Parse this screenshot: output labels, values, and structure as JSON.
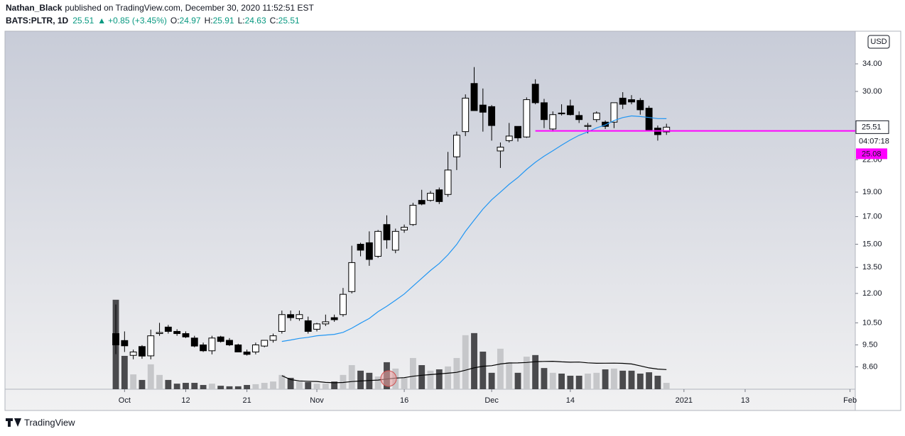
{
  "header": {
    "author": "Nathan_Black",
    "published": "published on TradingView.com, December 30, 2020 11:52:51 EST",
    "symbol": "BATS:PLTR, 1D",
    "change": "+0.85 (+3.45%)",
    "labels": [
      "O:",
      "H:",
      "L:",
      "C:"
    ]
  },
  "chart_data": {
    "type": "candlestick",
    "log_scale": true,
    "currency": "USD",
    "countdown": "04:07:18",
    "open": [
      10.0,
      9.69,
      9.06,
      9.43,
      9.04,
      10.0,
      10.3,
      10.1,
      10.0,
      9.8,
      9.5,
      9.25,
      9.85,
      9.7,
      9.5,
      9.2,
      9.2,
      9.45,
      9.7,
      10.1,
      10.9,
      10.7,
      10.6,
      10.2,
      10.45,
      10.75,
      10.9,
      12.1,
      15.0,
      15.1,
      14.2,
      16.4,
      14.6,
      16.0,
      16.4,
      18.3,
      18.3,
      19.2,
      18.8,
      22.3,
      25.0,
      31.1,
      28.2,
      28.0,
      22.9,
      24.0,
      25.6,
      24.4,
      31.0,
      28.5,
      25.3,
      27.2,
      28.1,
      26.9,
      25.6,
      26.4,
      26.1,
      26.1,
      29.1,
      28.9,
      28.8,
      27.8,
      25.4,
      24.97
    ],
    "high": [
      11.41,
      10.1,
      9.3,
      9.49,
      10.18,
      10.5,
      10.4,
      10.2,
      10.1,
      9.9,
      9.6,
      9.9,
      9.9,
      9.8,
      9.55,
      9.3,
      9.6,
      9.7,
      10.0,
      11.1,
      11.1,
      11.1,
      10.8,
      10.5,
      10.9,
      10.9,
      12.3,
      14.9,
      15.1,
      15.9,
      16.0,
      17.1,
      16.1,
      16.4,
      18.1,
      19.2,
      19.1,
      19.4,
      22.8,
      25.0,
      29.6,
      33.5,
      30.4,
      28.2,
      23.8,
      26.0,
      25.6,
      29.2,
      31.7,
      29.0,
      27.4,
      28.3,
      28.9,
      27.4,
      26.0,
      27.4,
      26.3,
      28.5,
      29.9,
      29.5,
      29.1,
      28.1,
      25.7,
      25.91
    ],
    "low": [
      9.11,
      9.2,
      8.9,
      8.92,
      8.9,
      9.9,
      10.0,
      9.9,
      9.8,
      9.4,
      9.2,
      9.1,
      9.6,
      9.45,
      9.2,
      9.05,
      9.1,
      9.4,
      9.6,
      10.0,
      10.6,
      10.6,
      10.0,
      10.1,
      10.35,
      10.55,
      10.8,
      12.0,
      14.2,
      13.6,
      14.1,
      14.7,
      14.4,
      15.8,
      16.3,
      17.9,
      18.2,
      18.0,
      18.6,
      21.0,
      24.5,
      27.5,
      25.0,
      24.0,
      21.2,
      23.8,
      23.9,
      24.3,
      28.3,
      25.4,
      25.0,
      26.9,
      26.9,
      26.0,
      24.8,
      26.1,
      25.3,
      25.4,
      27.7,
      28.3,
      27.0,
      25.2,
      24.0,
      24.63
    ],
    "close": [
      9.5,
      9.46,
      9.2,
      9.03,
      9.9,
      10.05,
      10.1,
      10.0,
      9.85,
      9.45,
      9.25,
      9.8,
      9.65,
      9.5,
      9.2,
      9.1,
      9.5,
      9.7,
      9.9,
      10.9,
      10.75,
      10.9,
      10.1,
      10.45,
      10.55,
      10.65,
      11.95,
      13.8,
      14.6,
      14.0,
      15.9,
      15.3,
      15.9,
      16.2,
      17.9,
      18.0,
      18.9,
      18.2,
      21.0,
      24.6,
      29.1,
      27.5,
      27.3,
      25.7,
      23.3,
      24.5,
      24.3,
      28.9,
      28.5,
      26.4,
      27.0,
      27.1,
      27.0,
      26.4,
      25.7,
      27.2,
      25.6,
      28.5,
      28.3,
      28.6,
      27.6,
      25.2,
      24.66,
      25.51
    ],
    "volume": [
      338,
      126,
      56,
      35,
      94,
      54,
      35,
      21,
      24,
      24,
      16,
      21,
      13,
      11,
      11,
      16,
      19,
      24,
      29,
      54,
      43,
      29,
      27,
      21,
      21,
      29,
      54,
      91,
      70,
      62,
      48,
      102,
      78,
      43,
      118,
      91,
      70,
      75,
      86,
      118,
      204,
      212,
      142,
      62,
      153,
      102,
      62,
      123,
      129,
      80,
      62,
      59,
      51,
      51,
      59,
      62,
      75,
      78,
      70,
      70,
      59,
      64,
      51,
      24
    ],
    "vlim": [
      0,
      1350
    ],
    "xlim": [
      -12.6,
      84.6
    ],
    "xticks": [
      {
        "value": 1,
        "label": "Oct"
      },
      {
        "value": 8,
        "label": "12"
      },
      {
        "value": 15,
        "label": "21"
      },
      {
        "value": 23,
        "label": "Nov"
      },
      {
        "value": 33,
        "label": "16"
      },
      {
        "value": 43,
        "label": "Dec"
      },
      {
        "value": 52,
        "label": "14"
      },
      {
        "value": 65,
        "label": "2021"
      },
      {
        "value": 72,
        "label": "13"
      },
      {
        "value": 84,
        "label": "Feb"
      }
    ],
    "ylim": [
      7.77,
      39.3
    ],
    "yticks": [
      {
        "value": 8.6,
        "label": "8.60"
      },
      {
        "value": 9.5,
        "label": "9.50"
      },
      {
        "value": 10.5,
        "label": "10.50"
      },
      {
        "value": 12,
        "label": "12.00"
      },
      {
        "value": 13.5,
        "label": "13.50"
      },
      {
        "value": 15,
        "label": "15.00"
      },
      {
        "value": 17,
        "label": "17.00"
      },
      {
        "value": 19,
        "label": "19.00"
      },
      {
        "value": 22,
        "label": "22.00"
      },
      {
        "value": 30,
        "label": "30.00"
      },
      {
        "value": 34,
        "label": "34.00"
      }
    ],
    "hline": {
      "value": 25.08,
      "color": "#ff00ff",
      "from": 48
    },
    "ma": {
      "period": 20,
      "color": "#2196f3"
    },
    "volume_ma": {
      "period": 20,
      "color": "#000000"
    },
    "up_color": "#ffffff",
    "down_color": "#000000",
    "up_volume_color": "#c6c7ca",
    "down_volume_color": "#4a4a4d",
    "up_text_color": "#089981"
  },
  "footer": {
    "brand": "TradingView"
  }
}
